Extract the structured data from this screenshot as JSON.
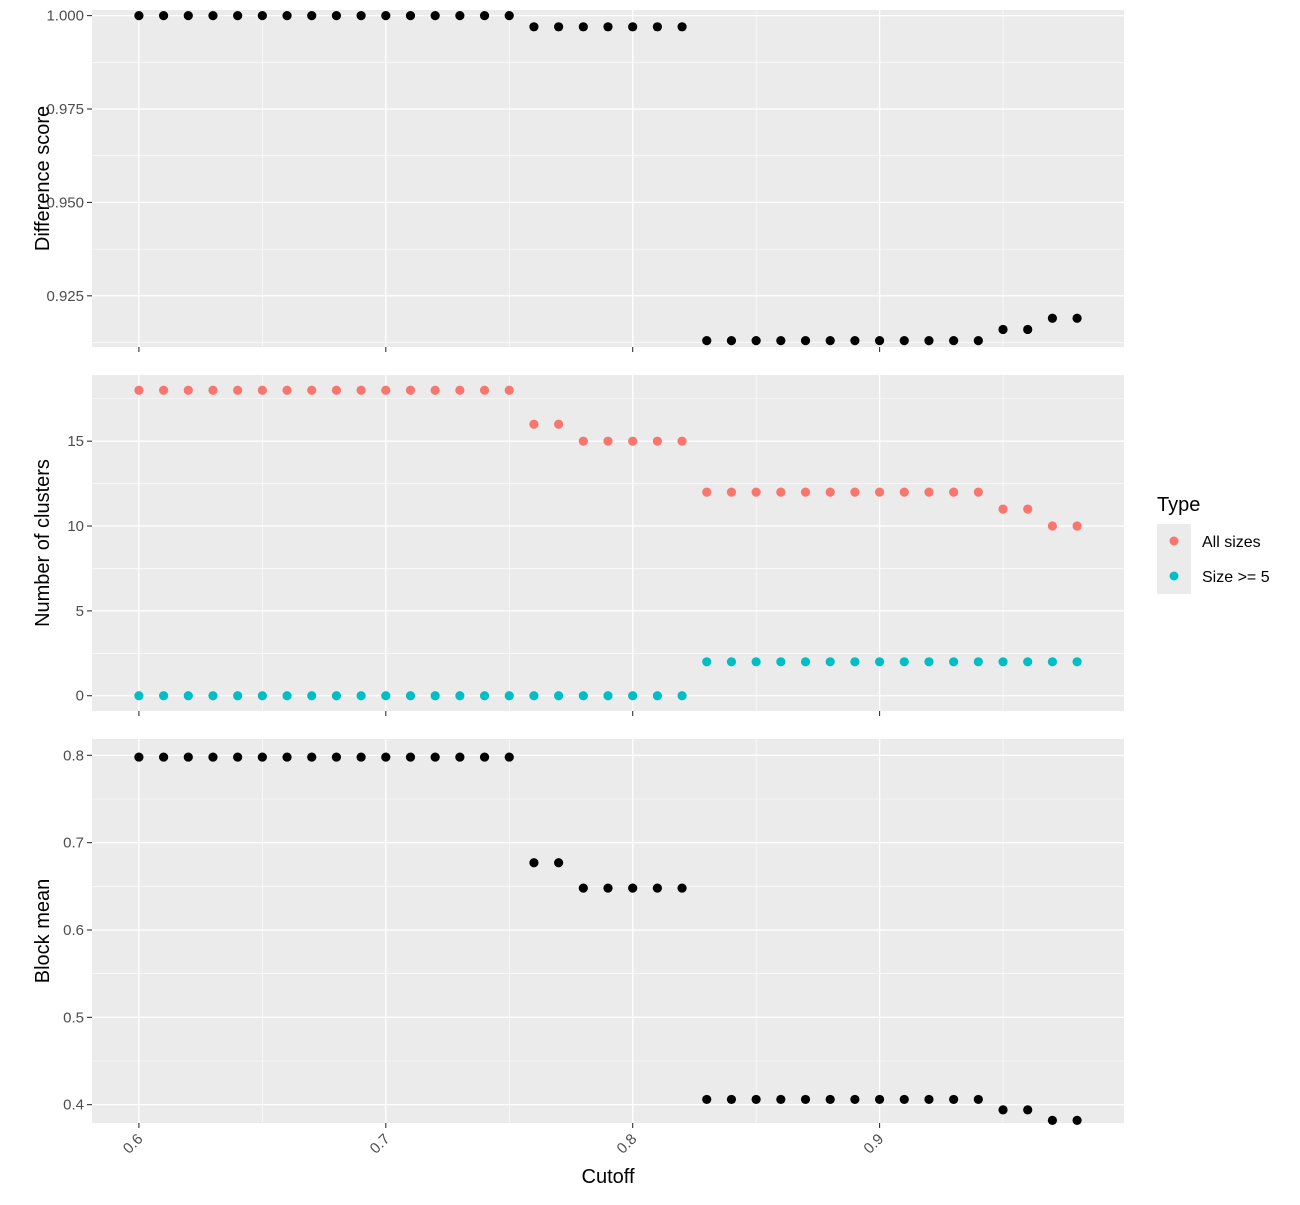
{
  "chart_data": [
    {
      "type": "scatter",
      "ylabel": "Difference score",
      "yticks": [
        "0.925",
        "0.950",
        "0.975",
        "1.000"
      ],
      "ylim": [
        0.9113,
        1.0015
      ],
      "grid": true,
      "series": [
        {
          "color": "#000000",
          "x": [
            0.6,
            0.61,
            0.62,
            0.63,
            0.64,
            0.65,
            0.66,
            0.67,
            0.68,
            0.69,
            0.7,
            0.71,
            0.72,
            0.73,
            0.74,
            0.75,
            0.76,
            0.77,
            0.78,
            0.79,
            0.8,
            0.81,
            0.82,
            0.83,
            0.84,
            0.85,
            0.86,
            0.87,
            0.88,
            0.89,
            0.9,
            0.91,
            0.92,
            0.93,
            0.94,
            0.95,
            0.96,
            0.97,
            0.98
          ],
          "values": [
            1.0,
            1.0,
            1.0,
            1.0,
            1.0,
            1.0,
            1.0,
            1.0,
            1.0,
            1.0,
            1.0,
            1.0,
            1.0,
            1.0,
            1.0,
            1.0,
            0.997,
            0.997,
            0.997,
            0.997,
            0.997,
            0.997,
            0.997,
            0.913,
            0.913,
            0.913,
            0.913,
            0.913,
            0.913,
            0.913,
            0.913,
            0.913,
            0.913,
            0.913,
            0.913,
            0.916,
            0.916,
            0.919,
            0.919
          ]
        }
      ]
    },
    {
      "type": "scatter",
      "ylabel": "Number of clusters",
      "yticks": [
        "0",
        "5",
        "10",
        "15"
      ],
      "ylim": [
        -0.9,
        18.9
      ],
      "grid": true,
      "series": [
        {
          "name": "All sizes",
          "color": "#F8766D",
          "x": [
            0.6,
            0.61,
            0.62,
            0.63,
            0.64,
            0.65,
            0.66,
            0.67,
            0.68,
            0.69,
            0.7,
            0.71,
            0.72,
            0.73,
            0.74,
            0.75,
            0.76,
            0.77,
            0.78,
            0.79,
            0.8,
            0.81,
            0.82,
            0.83,
            0.84,
            0.85,
            0.86,
            0.87,
            0.88,
            0.89,
            0.9,
            0.91,
            0.92,
            0.93,
            0.94,
            0.95,
            0.96,
            0.97,
            0.98
          ],
          "values": [
            18,
            18,
            18,
            18,
            18,
            18,
            18,
            18,
            18,
            18,
            18,
            18,
            18,
            18,
            18,
            18,
            16,
            16,
            15,
            15,
            15,
            15,
            15,
            12,
            12,
            12,
            12,
            12,
            12,
            12,
            12,
            12,
            12,
            12,
            12,
            11,
            11,
            10,
            10
          ]
        },
        {
          "name": "Size >= 5",
          "color": "#00BFC4",
          "x": [
            0.6,
            0.61,
            0.62,
            0.63,
            0.64,
            0.65,
            0.66,
            0.67,
            0.68,
            0.69,
            0.7,
            0.71,
            0.72,
            0.73,
            0.74,
            0.75,
            0.76,
            0.77,
            0.78,
            0.79,
            0.8,
            0.81,
            0.82,
            0.83,
            0.84,
            0.85,
            0.86,
            0.87,
            0.88,
            0.89,
            0.9,
            0.91,
            0.92,
            0.93,
            0.94,
            0.95,
            0.96,
            0.97,
            0.98
          ],
          "values": [
            0,
            0,
            0,
            0,
            0,
            0,
            0,
            0,
            0,
            0,
            0,
            0,
            0,
            0,
            0,
            0,
            0,
            0,
            0,
            0,
            0,
            0,
            0,
            2,
            2,
            2,
            2,
            2,
            2,
            2,
            2,
            2,
            2,
            2,
            2,
            2,
            2,
            2,
            2
          ]
        }
      ]
    },
    {
      "type": "scatter",
      "ylabel": "Block mean",
      "yticks": [
        "0.4",
        "0.5",
        "0.6",
        "0.7",
        "0.8"
      ],
      "ylim": [
        0.379,
        0.8187
      ],
      "grid": true,
      "series": [
        {
          "color": "#000000",
          "x": [
            0.6,
            0.61,
            0.62,
            0.63,
            0.64,
            0.65,
            0.66,
            0.67,
            0.68,
            0.69,
            0.7,
            0.71,
            0.72,
            0.73,
            0.74,
            0.75,
            0.76,
            0.77,
            0.78,
            0.79,
            0.8,
            0.81,
            0.82,
            0.83,
            0.84,
            0.85,
            0.86,
            0.87,
            0.88,
            0.89,
            0.9,
            0.91,
            0.92,
            0.93,
            0.94,
            0.95,
            0.96,
            0.97,
            0.98
          ],
          "values": [
            0.798,
            0.798,
            0.798,
            0.798,
            0.798,
            0.798,
            0.798,
            0.798,
            0.798,
            0.798,
            0.798,
            0.798,
            0.798,
            0.798,
            0.798,
            0.798,
            0.677,
            0.677,
            0.648,
            0.648,
            0.648,
            0.648,
            0.648,
            0.406,
            0.406,
            0.406,
            0.406,
            0.406,
            0.406,
            0.406,
            0.406,
            0.406,
            0.406,
            0.406,
            0.406,
            0.394,
            0.394,
            0.382,
            0.382
          ]
        }
      ]
    }
  ],
  "x_axis": {
    "label": "Cutoff",
    "ticks": [
      "0.6",
      "0.7",
      "0.8",
      "0.9"
    ],
    "tick_values": [
      0.6,
      0.7,
      0.8,
      0.9
    ],
    "xlim": [
      0.581,
      0.999
    ]
  },
  "legend": {
    "title": "Type",
    "position": "right",
    "entries": [
      {
        "label": "All sizes",
        "color": "#F8766D"
      },
      {
        "label": "Size >= 5",
        "color": "#00BFC4"
      }
    ]
  },
  "colors": {
    "panel_background": "#EBEBEB",
    "grid_major": "#FFFFFF",
    "axis_text": "#4D4D4D",
    "axis_title": "#000000"
  }
}
